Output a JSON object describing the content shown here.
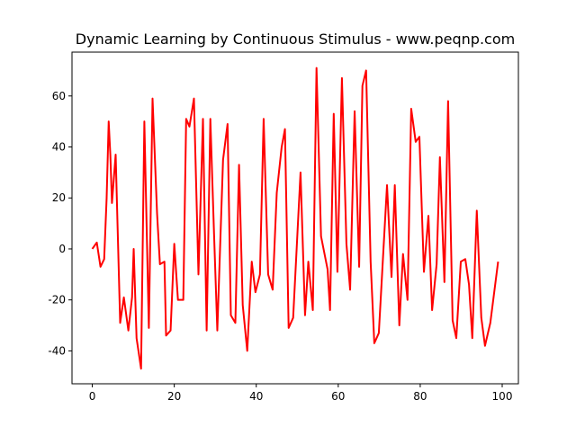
{
  "chart_data": {
    "type": "line",
    "title": "Dynamic Learning by Continuous Stimulus - www.peqnp.com",
    "x": [
      0,
      1.1,
      2,
      2.9,
      3.5,
      4,
      4.4,
      4.8,
      5.7,
      6.8,
      7.7,
      8.8,
      9.7,
      10.1,
      10.8,
      11.9,
      12.7,
      13.8,
      14.7,
      15.8,
      16.5,
      17.6,
      18,
      19.1,
      20,
      20.9,
      22.2,
      22.9,
      23.7,
      24.8,
      25.9,
      27,
      27.9,
      28.8,
      29.7,
      30.5,
      31.9,
      33,
      33.8,
      34.9,
      35.8,
      36.7,
      37.8,
      38.9,
      39.8,
      40.9,
      41.8,
      42.9,
      44,
      45,
      46.2,
      47,
      47.9,
      49,
      50.8,
      51.9,
      52.7,
      53.8,
      54.7,
      55.8,
      57.4,
      58,
      58.9,
      59.8,
      60.9,
      62,
      62.9,
      64,
      65.1,
      65.9,
      66.8,
      67.9,
      68.8,
      69.9,
      71.9,
      73,
      73.8,
      74.9,
      75.8,
      76.9,
      77.8,
      78.9,
      79.8,
      80.9,
      82,
      82.9,
      84,
      84.8,
      85.9,
      86.8,
      87.9,
      88.8,
      89.9,
      91,
      91.9,
      92.7,
      93.8,
      94.9,
      95.8,
      97.1,
      99
    ],
    "series": [
      {
        "color": "#ff0000",
        "values": [
          0,
          2.5,
          -7,
          -4,
          20,
          50,
          37,
          18,
          37,
          -29,
          -19,
          -32,
          -19,
          0,
          -35,
          -47,
          50,
          -31,
          59,
          14,
          -6,
          -5,
          -34,
          -32,
          2,
          -20,
          -20,
          51,
          48,
          59,
          -10,
          51,
          -32,
          51,
          6,
          -32,
          35,
          49,
          -26,
          -29,
          33,
          -22,
          -40,
          -5,
          -17,
          -10,
          51,
          -10,
          -16,
          22,
          40,
          47,
          -31,
          -27,
          30,
          -26,
          -5,
          -24,
          71,
          5,
          -8,
          -24,
          53,
          -9,
          67,
          2,
          -16,
          54,
          -7,
          64,
          70,
          -5,
          -37,
          -33,
          25,
          -11,
          25,
          -30,
          -2,
          -20,
          55,
          42,
          44,
          -9,
          13,
          -24,
          -6,
          36,
          -13,
          58,
          -28,
          -35,
          -5,
          -4,
          -14,
          -35,
          15,
          -27,
          -38,
          -29,
          -5
        ]
      }
    ],
    "xlim": [
      -4.95,
      103.95
    ],
    "ylim": [
      -52.9,
      77.2
    ],
    "xticks": [
      0,
      20,
      40,
      60,
      80,
      100
    ],
    "yticks": [
      -40,
      -20,
      0,
      20,
      40,
      60
    ]
  }
}
